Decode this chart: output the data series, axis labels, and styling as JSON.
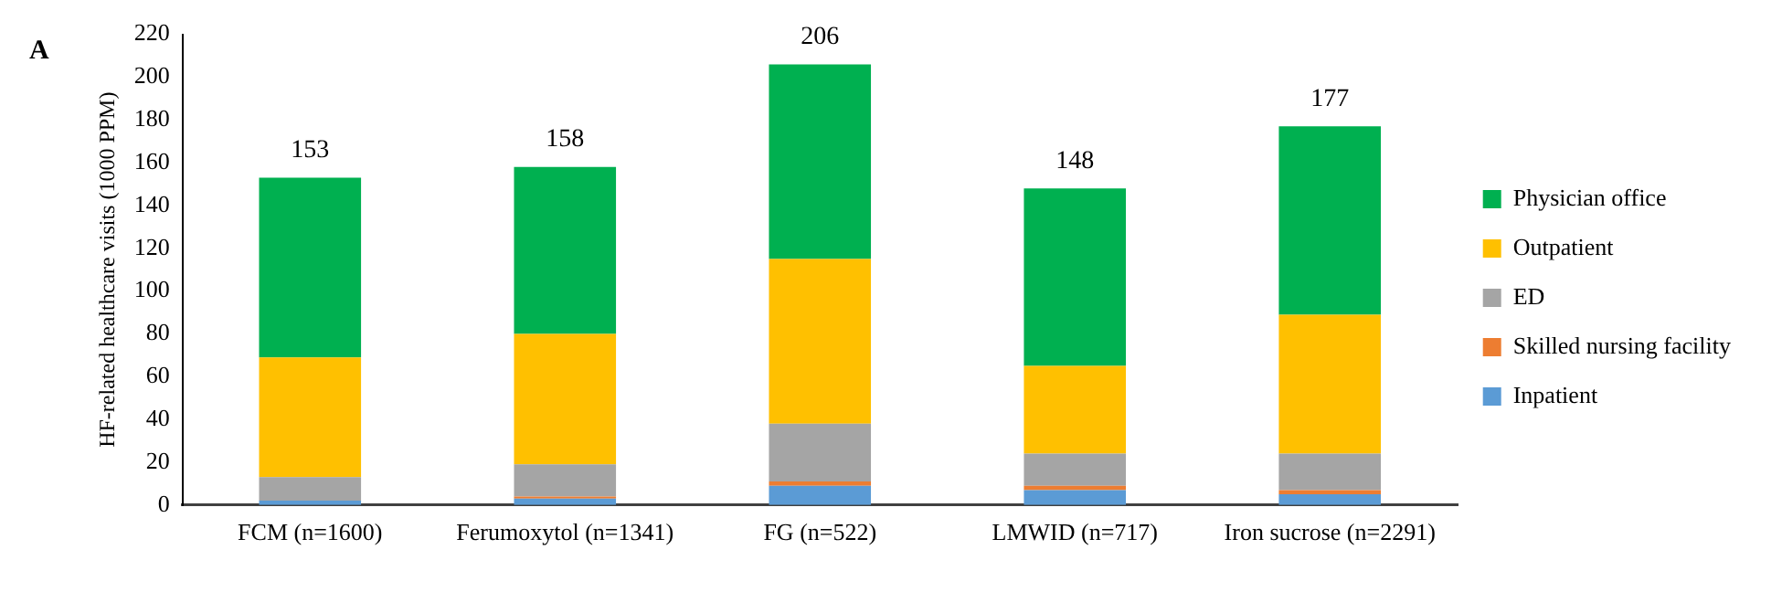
{
  "chart_data": {
    "type": "bar",
    "stacked": true,
    "ylabel": "HF-related healthcare visits (1000 PPM)",
    "annotations": [
      "A"
    ],
    "categories": [
      "FCM (n=1600)",
      "Ferumoxytol (n=1341)",
      "FG (n=522)",
      "LMWID (n=717)",
      "Iron sucrose (n=2291)"
    ],
    "series": [
      {
        "name": "Inpatient",
        "color": "#5b9bd5",
        "values": [
          2,
          3,
          9,
          7,
          5
        ]
      },
      {
        "name": "Skilled nursing facility",
        "color": "#ed7d31",
        "values": [
          null,
          1,
          2,
          2,
          2
        ]
      },
      {
        "name": "ED",
        "color": "#a5a5a5",
        "values": [
          11,
          15,
          27,
          15,
          17
        ]
      },
      {
        "name": "Outpatient",
        "color": "#ffc000",
        "values": [
          56,
          61,
          77,
          41,
          65
        ]
      },
      {
        "name": "Physician office",
        "color": "#00b050",
        "values": [
          84,
          78,
          91,
          83,
          88
        ]
      }
    ],
    "totals": [
      "153",
      "158",
      "206",
      "148",
      "177"
    ],
    "ylim": [
      0,
      220
    ],
    "yticks": [
      0,
      20,
      40,
      60,
      80,
      100,
      120,
      140,
      160,
      180,
      200,
      220
    ],
    "grid": false,
    "legend": "right"
  }
}
